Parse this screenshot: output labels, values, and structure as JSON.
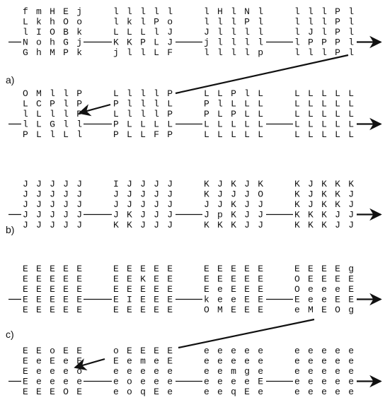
{
  "panels": [
    {
      "label": "a)",
      "rows": [
        {
          "grids": [
            [
              "fmHEj",
              "LkhOo",
              "lIOBk",
              "NohGj",
              "GhMPk"
            ],
            [
              "lllll",
              "lklPo",
              "LLLlJ",
              "KKPLJ",
              "jllLF"
            ],
            [
              "lHlNl",
              "lllPl",
              "Jllll",
              "jllll",
              "llllp"
            ],
            [
              "lllPl",
              "lllPl",
              "lJlPl",
              "lPPPl",
              "lllPl"
            ]
          ]
        },
        {
          "grids": [
            [
              "OMllP",
              "LCPlP",
              "lLllP",
              "lLGll",
              "PLlLl"
            ],
            [
              "LlllP",
              "PlllL",
              "LlllP",
              "PLLLL",
              "PLLFP"
            ],
            [
              "LLPlL",
              "PlLLL",
              "PLPLL",
              "LLLLL",
              "LLLLL"
            ],
            [
              "LLLLL",
              "LLLLL",
              "LLLLL",
              "LLLLL",
              "LLLLL"
            ]
          ]
        }
      ]
    },
    {
      "label": "b)",
      "rows": [
        {
          "grids": [
            [
              "JJJJJ",
              "JJJJJ",
              "JJJJJ",
              "JJJJJ",
              "JJJJJ"
            ],
            [
              "IJJJJ",
              "JJJJJ",
              "JJJJJ",
              "JKJJJ",
              "KKJJJ"
            ],
            [
              "KJKJK",
              "KJJJO",
              "JJKJJ",
              "JpKJJ",
              "KKKJJ"
            ],
            [
              "KJKKK",
              "KJKKJ",
              "KJKKJ",
              "KKKJJ",
              "KKKJJ"
            ]
          ]
        }
      ]
    },
    {
      "label": "c)",
      "rows": [
        {
          "grids": [
            [
              "EEEEE",
              "EEEEE",
              "EEEEE",
              "EEEEE",
              "EEEEE"
            ],
            [
              "EEEEE",
              "EEKEE",
              "EEEEE",
              "EIEEE",
              "EEEEE"
            ],
            [
              "EEEEE",
              "EEEEE",
              "EeEEE",
              "keeEE",
              "OMEEE"
            ],
            [
              "EEEEg",
              "OEEEE",
              "OeeeE",
              "EeeEE",
              "eMEOg"
            ]
          ]
        },
        {
          "grids": [
            [
              "EEoEE",
              "EeEeE",
              "Eeeeo",
              "Eeeee",
              "EEEOE"
            ],
            [
              "oEEEE",
              "EemeE",
              "eeeee",
              "eoeee",
              "eoqEe"
            ],
            [
              "eeeee",
              "eeeee",
              "eemge",
              "eeeeE",
              "eeqEe"
            ],
            [
              "eeeee",
              "eeeee",
              "eeeee",
              "eeeee",
              "eeeee"
            ]
          ]
        }
      ]
    }
  ]
}
